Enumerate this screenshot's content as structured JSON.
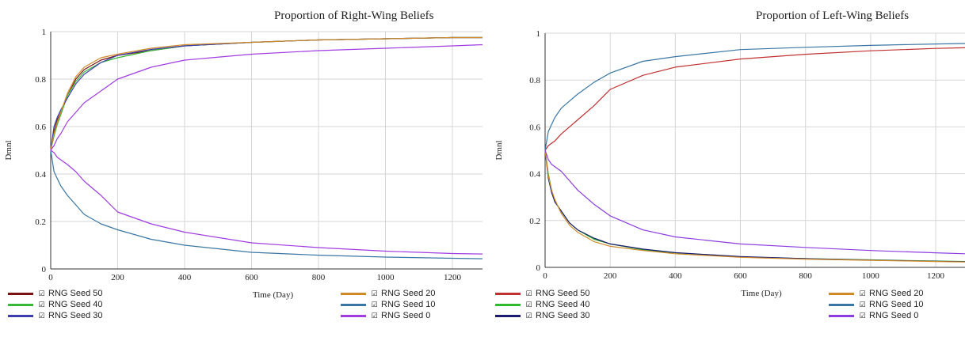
{
  "charts": [
    {
      "title": "Proportion of Right-Wing Beliefs",
      "legend": [
        "RNG Seed 50",
        "RNG Seed 40",
        "RNG Seed 30",
        "RNG Seed 20",
        "RNG Seed 10",
        "RNG Seed 0"
      ]
    },
    {
      "title": "Proportion of Left-Wing Beliefs",
      "legend": [
        "RNG Seed 50",
        "RNG Seed 40",
        "RNG Seed 30",
        "RNG Seed 20",
        "RNG Seed 10",
        "RNG Seed 0"
      ]
    }
  ],
  "checkbox_glyph": "☑",
  "chart_data": [
    {
      "type": "line",
      "title": "Proportion of Right-Wing Beliefs",
      "xlabel": "Time (Day)",
      "ylabel": "Dmnl",
      "xlim": [
        0,
        1290
      ],
      "ylim": [
        0,
        1
      ],
      "xticks": [
        0,
        200,
        400,
        600,
        800,
        1000,
        1200
      ],
      "yticks": [
        0,
        0.2,
        0.4,
        0.6,
        0.8,
        1
      ],
      "ytick_labels": [
        "0",
        "0.2",
        "0.4",
        "0.6",
        "0.8",
        "1"
      ],
      "grid": true,
      "legend_position": "bottom",
      "x": [
        0,
        10,
        20,
        30,
        50,
        75,
        100,
        150,
        200,
        300,
        400,
        600,
        800,
        1000,
        1200,
        1290
      ],
      "series": [
        {
          "name": "RNG Seed 50",
          "color": "#7a1212",
          "values": [
            0.5,
            0.58,
            0.63,
            0.66,
            0.73,
            0.8,
            0.84,
            0.88,
            0.9,
            0.92,
            0.94,
            0.955,
            0.965,
            0.97,
            0.975,
            0.975
          ]
        },
        {
          "name": "RNG Seed 40",
          "color": "#38b838",
          "values": [
            0.5,
            0.56,
            0.61,
            0.65,
            0.73,
            0.79,
            0.83,
            0.87,
            0.89,
            0.92,
            0.94,
            0.955,
            0.965,
            0.97,
            0.975,
            0.975
          ]
        },
        {
          "name": "RNG Seed 30",
          "color": "#3d3dae",
          "values": [
            0.5,
            0.6,
            0.64,
            0.67,
            0.72,
            0.78,
            0.82,
            0.87,
            0.9,
            0.925,
            0.94,
            0.955,
            0.965,
            0.97,
            0.975,
            0.975
          ]
        },
        {
          "name": "RNG Seed 20",
          "color": "#d08a2a",
          "values": [
            0.5,
            0.57,
            0.62,
            0.66,
            0.74,
            0.81,
            0.85,
            0.89,
            0.905,
            0.93,
            0.945,
            0.955,
            0.965,
            0.97,
            0.975,
            0.975
          ]
        },
        {
          "name": "RNG Seed 10",
          "color": "#3a76a3",
          "values": [
            0.5,
            0.41,
            0.38,
            0.35,
            0.31,
            0.27,
            0.23,
            0.19,
            0.165,
            0.125,
            0.1,
            0.07,
            0.058,
            0.05,
            0.045,
            0.043
          ]
        },
        {
          "name": "RNG Seed 0",
          "color": "#a03ce0",
          "values": [
            0.5,
            0.49,
            0.47,
            0.46,
            0.44,
            0.41,
            0.37,
            0.31,
            0.24,
            0.19,
            0.155,
            0.11,
            0.09,
            0.075,
            0.065,
            0.063
          ]
        }
      ],
      "upper_series": [
        {
          "name": "RNG Seed 0 (complement)",
          "color": "#a03ce0",
          "values": [
            0.5,
            0.52,
            0.55,
            0.57,
            0.62,
            0.66,
            0.7,
            0.75,
            0.8,
            0.85,
            0.88,
            0.905,
            0.92,
            0.93,
            0.94,
            0.945
          ]
        }
      ]
    },
    {
      "type": "line",
      "title": "Proportion of Left-Wing Beliefs",
      "xlabel": "Time (Day)",
      "ylabel": "Dmnl",
      "xlim": [
        0,
        1290
      ],
      "ylim": [
        0,
        1
      ],
      "xticks": [
        0,
        200,
        400,
        600,
        800,
        1000,
        1200
      ],
      "yticks": [
        0,
        0.2,
        0.4,
        0.6,
        0.8,
        1
      ],
      "ytick_labels": [
        "0",
        "0.2",
        "0.4",
        "0.6",
        "0.8",
        "1"
      ],
      "grid": true,
      "legend_position": "bottom",
      "x": [
        0,
        10,
        20,
        30,
        50,
        75,
        100,
        150,
        200,
        300,
        400,
        600,
        800,
        1000,
        1200,
        1290
      ],
      "series": [
        {
          "name": "RNG Seed 50",
          "color": "#c03030",
          "values": [
            0.5,
            0.52,
            0.53,
            0.54,
            0.57,
            0.6,
            0.63,
            0.69,
            0.76,
            0.82,
            0.855,
            0.89,
            0.91,
            0.925,
            0.935,
            0.938
          ]
        },
        {
          "name": "RNG Seed 40",
          "color": "#30b830",
          "values": [
            0.5,
            0.4,
            0.33,
            0.28,
            0.24,
            0.19,
            0.16,
            0.12,
            0.1,
            0.075,
            0.062,
            0.045,
            0.037,
            0.032,
            0.027,
            0.025
          ]
        },
        {
          "name": "RNG Seed 30",
          "color": "#1a1a6e",
          "values": [
            0.5,
            0.38,
            0.32,
            0.28,
            0.24,
            0.19,
            0.16,
            0.125,
            0.1,
            0.078,
            0.063,
            0.046,
            0.037,
            0.031,
            0.026,
            0.024
          ]
        },
        {
          "name": "RNG Seed 20",
          "color": "#d08a2a",
          "values": [
            0.5,
            0.39,
            0.33,
            0.29,
            0.23,
            0.18,
            0.15,
            0.11,
            0.09,
            0.072,
            0.058,
            0.043,
            0.035,
            0.03,
            0.025,
            0.023
          ]
        },
        {
          "name": "RNG Seed 10",
          "color": "#3a76a3",
          "values": [
            0.5,
            0.58,
            0.61,
            0.64,
            0.68,
            0.71,
            0.74,
            0.79,
            0.83,
            0.88,
            0.9,
            0.93,
            0.94,
            0.948,
            0.954,
            0.956
          ]
        },
        {
          "name": "RNG Seed 0",
          "color": "#8c3ce0",
          "values": [
            0.5,
            0.46,
            0.44,
            0.43,
            0.41,
            0.37,
            0.33,
            0.27,
            0.22,
            0.16,
            0.13,
            0.1,
            0.085,
            0.072,
            0.062,
            0.058
          ]
        }
      ]
    }
  ]
}
